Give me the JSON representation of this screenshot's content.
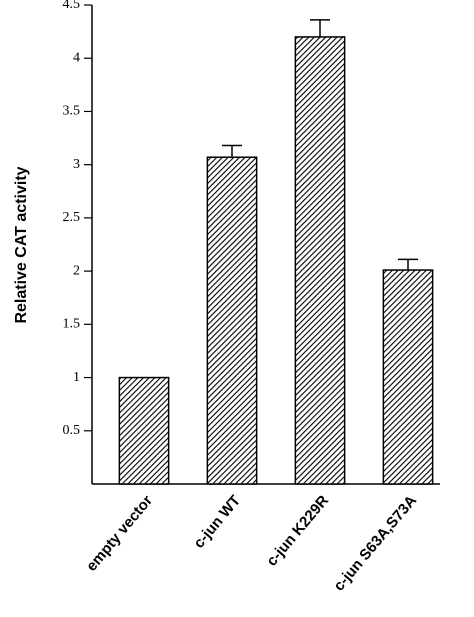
{
  "chart_data": {
    "type": "bar",
    "y_label": "Relative CAT activity",
    "categories": [
      "empty vector",
      "c-jun WT",
      "c-jun K229R",
      "c-jun S63A,S73A"
    ],
    "values": [
      1,
      3.07,
      4.2,
      2.01
    ],
    "errors": [
      null,
      0.11,
      0.16,
      0.1
    ],
    "ylim": [
      0,
      4.5
    ],
    "yticks": [
      0.5,
      1,
      1.5,
      2,
      2.5,
      3,
      3.5,
      4,
      4.5
    ],
    "color": "#000000"
  }
}
